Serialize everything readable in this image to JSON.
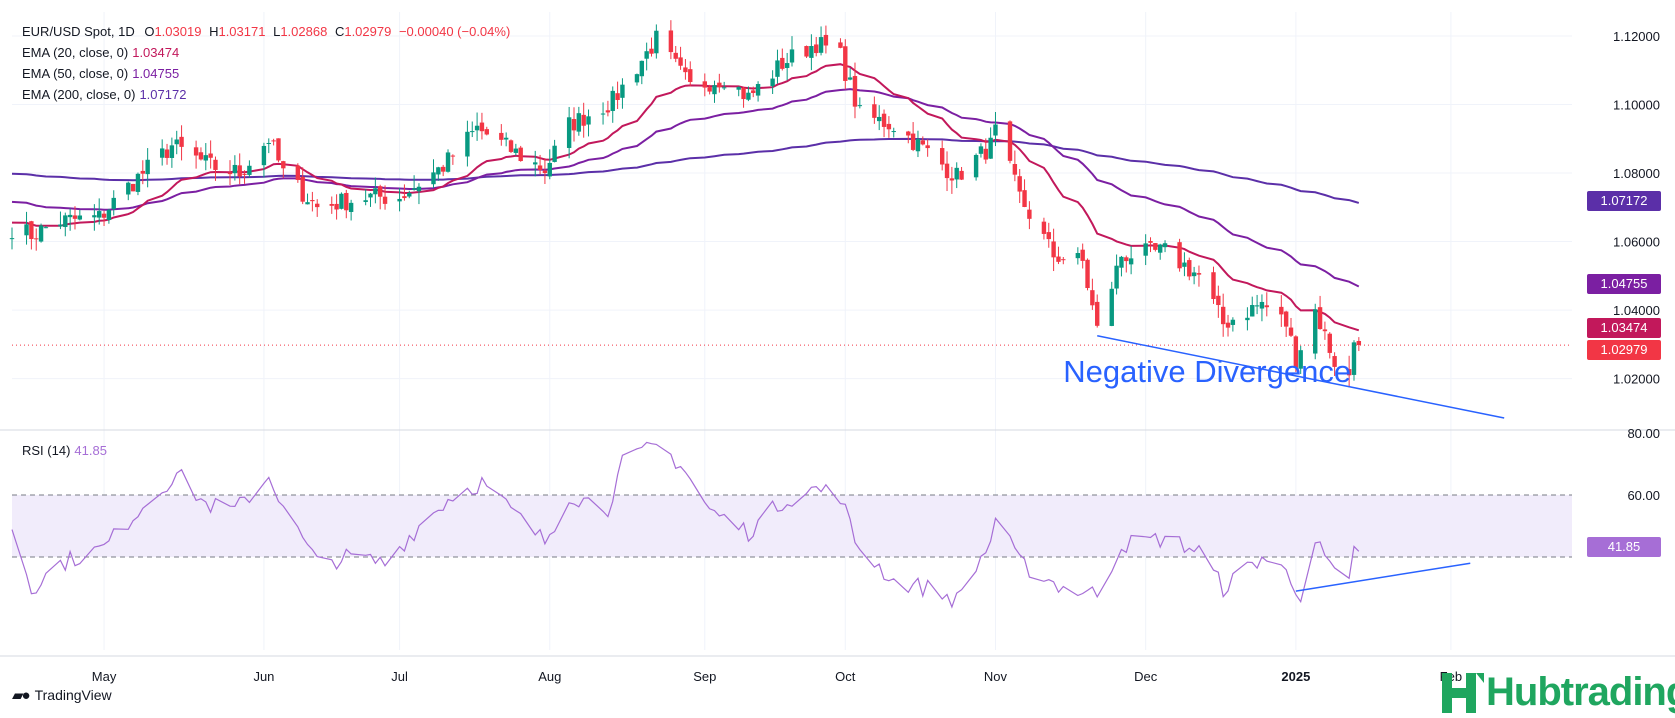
{
  "header": {
    "symbol_line": "EUR/USD Spot, 1D",
    "o_label": "O",
    "o_value": "1.03019",
    "h_label": "H",
    "h_value": "1.03171",
    "l_label": "L",
    "l_value": "1.02868",
    "c_label": "C",
    "c_value": "1.02979",
    "change": "−0.00040 (−0.04%)",
    "ema20_label": "EMA (20, close, 0)",
    "ema20_value": "1.03474",
    "ema50_label": "EMA (50, close, 0)",
    "ema50_value": "1.04755",
    "ema200_label": "EMA (200, close, 0)",
    "ema200_value": "1.07172",
    "rsi_label": "RSI (14)",
    "rsi_value": "41.85"
  },
  "colors": {
    "up": "#089981",
    "down": "#f23645",
    "ema20": "#c2185b",
    "ema50": "#7b1fa2",
    "ema200": "#5b2fa8",
    "rsi": "#a66ed6",
    "trend": "#2962ff",
    "band": "#f1ecfb"
  },
  "annotation": {
    "text": "Negative Divergence"
  },
  "branding": {
    "tradingview": "TradingView",
    "hub": "Hubtrading"
  },
  "price_tags": [
    {
      "label": "1.07172",
      "color": "#5b2fa8",
      "value": 1.07172
    },
    {
      "label": "1.04755",
      "color": "#7b1fa2",
      "value": 1.04755
    },
    {
      "label": "1.03474",
      "color": "#c2185b",
      "value": 1.03474
    },
    {
      "label": "1.02979",
      "color": "#f23645",
      "value": 1.02979
    }
  ],
  "rsi_tag": {
    "label": "41.85",
    "color": "#a66ed6",
    "value": 41.85
  },
  "chart_data": [
    {
      "type": "candlestick",
      "title": "EUR/USD Spot, 1D",
      "ylim": [
        1.005,
        1.127
      ],
      "y_ticks": [
        "1.02000",
        "1.04000",
        "1.06000",
        "1.08000",
        "1.10000",
        "1.12000"
      ],
      "y_tick_values": [
        1.02,
        1.04,
        1.06,
        1.08,
        1.1,
        1.12
      ],
      "x_tick_labels": [
        "May",
        "Jun",
        "Jul",
        "Aug",
        "Sep",
        "Oct",
        "Nov",
        "Dec",
        "2025",
        "Feb"
      ],
      "x_tick_dates": [
        "2024-05-01",
        "2024-06-03",
        "2024-07-01",
        "2024-08-01",
        "2024-09-02",
        "2024-10-01",
        "2024-11-01",
        "2024-12-02",
        "2025-01-02",
        "2025-02-03"
      ],
      "x_range": [
        "2024-04-12",
        "2025-02-28"
      ],
      "close_anchors": [
        [
          "2024-04-12",
          1.064
        ],
        [
          "2024-04-16",
          1.062
        ],
        [
          "2024-04-22",
          1.066
        ],
        [
          "2024-04-30",
          1.067
        ],
        [
          "2024-05-06",
          1.076
        ],
        [
          "2024-05-15",
          1.088
        ],
        [
          "2024-05-23",
          1.082
        ],
        [
          "2024-05-29",
          1.08
        ],
        [
          "2024-06-04",
          1.09
        ],
        [
          "2024-06-07",
          1.08
        ],
        [
          "2024-06-14",
          1.07
        ],
        [
          "2024-06-24",
          1.073
        ],
        [
          "2024-07-01",
          1.073
        ],
        [
          "2024-07-10",
          1.082
        ],
        [
          "2024-07-17",
          1.093
        ],
        [
          "2024-07-26",
          1.085
        ],
        [
          "2024-07-31",
          1.081
        ],
        [
          "2024-08-05",
          1.094
        ],
        [
          "2024-08-14",
          1.101
        ],
        [
          "2024-08-23",
          1.119
        ],
        [
          "2024-08-30",
          1.105
        ],
        [
          "2024-09-06",
          1.108
        ],
        [
          "2024-09-11",
          1.102
        ],
        [
          "2024-09-18",
          1.112
        ],
        [
          "2024-09-25",
          1.118
        ],
        [
          "2024-09-30",
          1.114
        ],
        [
          "2024-10-04",
          1.097
        ],
        [
          "2024-10-11",
          1.094
        ],
        [
          "2024-10-18",
          1.086
        ],
        [
          "2024-10-24",
          1.079
        ],
        [
          "2024-10-31",
          1.088
        ],
        [
          "2024-11-01",
          1.092
        ],
        [
          "2024-11-06",
          1.073
        ],
        [
          "2024-11-13",
          1.056
        ],
        [
          "2024-11-19",
          1.054
        ],
        [
          "2024-11-22",
          1.034
        ],
        [
          "2024-11-27",
          1.056
        ],
        [
          "2024-12-06",
          1.057
        ],
        [
          "2024-12-13",
          1.05
        ],
        [
          "2024-12-18",
          1.036
        ],
        [
          "2024-12-26",
          1.042
        ],
        [
          "2024-12-31",
          1.036
        ],
        [
          "2025-01-02",
          1.026
        ],
        [
          "2025-01-06",
          1.04
        ],
        [
          "2025-01-10",
          1.025
        ],
        [
          "2025-01-13",
          1.02
        ],
        [
          "2025-01-14",
          1.031
        ],
        [
          "2025-01-15",
          1.0298
        ]
      ],
      "last_bar": {
        "date": "2025-01-15",
        "open": 1.03019,
        "high": 1.03171,
        "low": 1.02868,
        "close": 1.02979
      },
      "series": [
        {
          "name": "EMA (20, close, 0)",
          "last": 1.03474
        },
        {
          "name": "EMA (50, close, 0)",
          "last": 1.04755
        },
        {
          "name": "EMA (200, close, 0)",
          "last": 1.07172
        }
      ],
      "annotations": [
        {
          "type": "trendline",
          "start": [
            "2024-11-22",
            1.0325
          ],
          "end": [
            "2025-02-14",
            1.0085
          ]
        },
        {
          "type": "text",
          "text": "Negative Divergence",
          "at": [
            "2024-11-15",
            1.019
          ]
        }
      ]
    },
    {
      "type": "line",
      "title": "RSI (14)",
      "ylim": [
        10,
        80
      ],
      "y_ticks": [
        "60.00",
        "80.00"
      ],
      "y_tick_values": [
        60,
        80
      ],
      "band": [
        40,
        60
      ],
      "series": [
        {
          "name": "RSI (14)",
          "last": 41.85,
          "anchors": [
            [
              "2024-04-12",
              50
            ],
            [
              "2024-04-16",
              30
            ],
            [
              "2024-04-22",
              38
            ],
            [
              "2024-05-01",
              43
            ],
            [
              "2024-05-08",
              55
            ],
            [
              "2024-05-16",
              67
            ],
            [
              "2024-05-22",
              57
            ],
            [
              "2024-05-28",
              55
            ],
            [
              "2024-06-04",
              66
            ],
            [
              "2024-06-10",
              48
            ],
            [
              "2024-06-14",
              38
            ],
            [
              "2024-06-21",
              40
            ],
            [
              "2024-06-28",
              38
            ],
            [
              "2024-07-05",
              50
            ],
            [
              "2024-07-12",
              60
            ],
            [
              "2024-07-18",
              64
            ],
            [
              "2024-07-26",
              52
            ],
            [
              "2024-07-31",
              45
            ],
            [
              "2024-08-05",
              60
            ],
            [
              "2024-08-13",
              56
            ],
            [
              "2024-08-16",
              70
            ],
            [
              "2024-08-23",
              76
            ],
            [
              "2024-08-28",
              70
            ],
            [
              "2024-09-03",
              55
            ],
            [
              "2024-09-11",
              48
            ],
            [
              "2024-09-18",
              58
            ],
            [
              "2024-09-25",
              62
            ],
            [
              "2024-09-30",
              60
            ],
            [
              "2024-10-03",
              45
            ],
            [
              "2024-10-11",
              32
            ],
            [
              "2024-10-18",
              30
            ],
            [
              "2024-10-24",
              26
            ],
            [
              "2024-10-31",
              45
            ],
            [
              "2024-11-01",
              53
            ],
            [
              "2024-11-06",
              38
            ],
            [
              "2024-11-15",
              30
            ],
            [
              "2024-11-22",
              28
            ],
            [
              "2024-11-27",
              44
            ],
            [
              "2024-12-06",
              46
            ],
            [
              "2024-12-13",
              42
            ],
            [
              "2024-12-18",
              30
            ],
            [
              "2024-12-26",
              40
            ],
            [
              "2024-12-31",
              35
            ],
            [
              "2025-01-03",
              28
            ],
            [
              "2025-01-06",
              45
            ],
            [
              "2025-01-10",
              34
            ],
            [
              "2025-01-13",
              31
            ],
            [
              "2025-01-14",
              42
            ],
            [
              "2025-01-15",
              41.85
            ]
          ]
        }
      ],
      "annotations": [
        {
          "type": "trendline",
          "start": [
            "2025-01-02",
            29
          ],
          "end": [
            "2025-02-07",
            38
          ]
        }
      ]
    }
  ]
}
